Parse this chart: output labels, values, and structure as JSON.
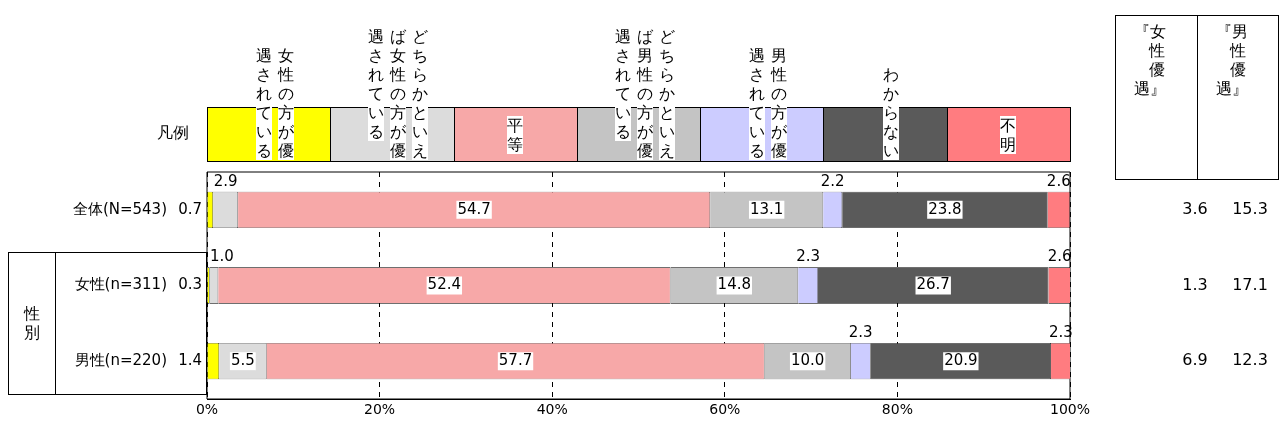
{
  "chart_data": {
    "type": "bar",
    "orientation": "horizontal",
    "stacked": true,
    "categories": [
      "全体(N=543)",
      "女性(n=311)",
      "男性(n=220)"
    ],
    "series": [
      {
        "name": "女性の方が優遇されている",
        "color": "#ffff00",
        "values": [
          0.7,
          0.3,
          1.4
        ],
        "value_labels": [
          "0.7",
          "0.3",
          "1.4"
        ]
      },
      {
        "name": "どちらかといえば女性の方が優遇されている",
        "color": "#dcdcdc",
        "values": [
          2.9,
          1.0,
          5.5
        ],
        "value_labels": [
          "2.9",
          "1.0",
          "5.5"
        ]
      },
      {
        "name": "平等",
        "color": "#f7a8a8",
        "values": [
          54.7,
          52.4,
          57.7
        ],
        "value_labels": [
          "54.7",
          "52.4",
          "57.7"
        ]
      },
      {
        "name": "どちらかといえば男性の方が優遇されている",
        "color": "#c4c4c4",
        "values": [
          13.1,
          14.8,
          10.0
        ],
        "value_labels": [
          "13.1",
          "14.8",
          "10.0"
        ]
      },
      {
        "name": "男性の方が優遇されている",
        "color": "#ccccff",
        "values": [
          2.2,
          2.3,
          2.3
        ],
        "value_labels": [
          "2.2",
          "2.3",
          "2.3"
        ]
      },
      {
        "name": "わからない",
        "color": "#5a5a5a",
        "values": [
          23.8,
          26.7,
          20.9
        ],
        "value_labels": [
          "23.8",
          "26.7",
          "20.9"
        ]
      },
      {
        "name": "不明",
        "color": "#ff7c80",
        "values": [
          2.6,
          2.6,
          2.3
        ],
        "value_labels": [
          "2.6",
          "2.6",
          "2.3"
        ]
      }
    ],
    "xlim": [
      0,
      100
    ],
    "xticks": [
      {
        "value": 0,
        "label": "0%"
      },
      {
        "value": 20,
        "label": "20%"
      },
      {
        "value": 40,
        "label": "40%"
      },
      {
        "value": 60,
        "label": "60%"
      },
      {
        "value": 80,
        "label": "80%"
      },
      {
        "value": 100,
        "label": "100%"
      }
    ],
    "grid": "x",
    "legend": "top",
    "legend_title": "凡例",
    "annotations": [
      "性別",
      "『女性優遇』",
      "『男性優遇』",
      "3.6",
      "15.3",
      "1.3",
      "17.1",
      "6.9",
      "12.3"
    ]
  }
}
